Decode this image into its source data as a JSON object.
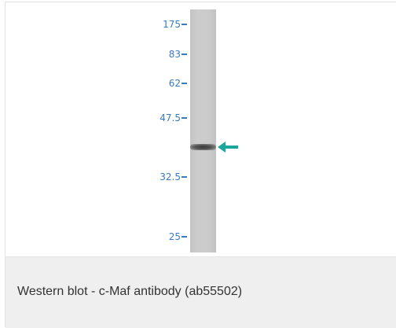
{
  "blot": {
    "markers": [
      {
        "label": "175",
        "pos": 0.06
      },
      {
        "label": "83",
        "pos": 0.185
      },
      {
        "label": "62",
        "pos": 0.305
      },
      {
        "label": "47.5",
        "pos": 0.445
      },
      {
        "label": "32.5",
        "pos": 0.69
      },
      {
        "label": "25",
        "pos": 0.935
      }
    ],
    "band_pos": 0.565,
    "arrow_color": "#19a89a",
    "marker_color": "#3a7bbf",
    "arrow_icon": "arrow-left-icon"
  },
  "caption": "Western blot - c-Maf antibody (ab55502)"
}
